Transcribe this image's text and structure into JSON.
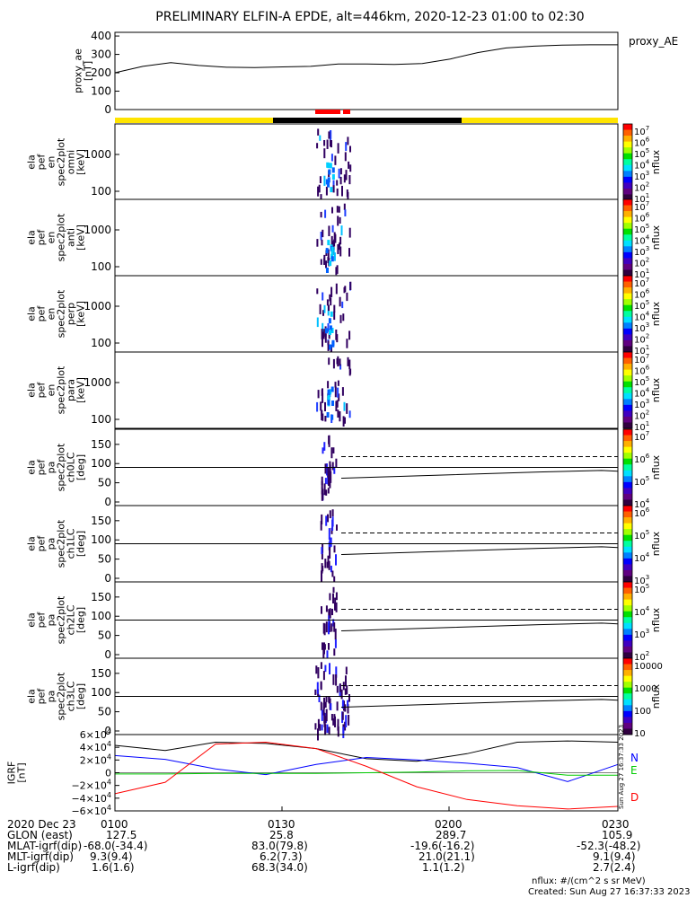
{
  "title": "PRELIMINARY ELFIN-A EPDE, alt=446km, 2020-12-23 01:00 to 02:30",
  "ae_panel": {
    "ylabel": [
      "proxy_ae",
      "[nT]"
    ],
    "right_label": "proxy_AE",
    "yticks": [
      "400",
      "300",
      "200",
      "100",
      "0"
    ],
    "ylim": [
      0,
      420
    ]
  },
  "status_bar": {
    "colors": {
      "yellow": "#FFE400",
      "black": "#000000",
      "red": "#FF0000"
    }
  },
  "energy_panels": [
    {
      "ylabel": [
        "ela",
        "pef",
        "en",
        "spec2plot",
        "omni",
        "[keV]"
      ],
      "yticks": [
        "1000",
        "100"
      ],
      "cbar_ticks": [
        "10^7",
        "10^6",
        "10^5",
        "10^4",
        "10^3",
        "10^2",
        "10^1"
      ],
      "cbar_label": "nflux"
    },
    {
      "ylabel": [
        "ela",
        "pef",
        "en",
        "spec2plot",
        "anti",
        "[keV]"
      ],
      "yticks": [
        "1000",
        "100"
      ],
      "cbar_ticks": [
        "10^7",
        "10^6",
        "10^5",
        "10^4",
        "10^3",
        "10^2",
        "10^1"
      ],
      "cbar_label": "nflux"
    },
    {
      "ylabel": [
        "ela",
        "pef",
        "en",
        "spec2plot",
        "perp",
        "[keV]"
      ],
      "yticks": [
        "1000",
        "100"
      ],
      "cbar_ticks": [
        "10^7",
        "10^6",
        "10^5",
        "10^4",
        "10^3",
        "10^2",
        "10^1"
      ],
      "cbar_label": "nflux"
    },
    {
      "ylabel": [
        "ela",
        "pef",
        "en",
        "spec2plot",
        "para",
        "[keV]"
      ],
      "yticks": [
        "1000",
        "100"
      ],
      "cbar_ticks": [
        "10^7",
        "10^6",
        "10^5",
        "10^4",
        "10^3",
        "10^2",
        "10^1"
      ],
      "cbar_label": "nflux"
    }
  ],
  "pa_panels": [
    {
      "ylabel": [
        "ela",
        "pef",
        "pa",
        "spec2plot",
        "ch0LC",
        "[deg]"
      ],
      "yticks": [
        "150",
        "100",
        "50",
        "0"
      ],
      "cbar_ticks": [
        "10^7",
        "10^6",
        "10^5",
        "10^4"
      ],
      "cbar_label": "nflux"
    },
    {
      "ylabel": [
        "ela",
        "pef",
        "pa",
        "spec2plot",
        "ch1LC",
        "[deg]"
      ],
      "yticks": [
        "150",
        "100",
        "50",
        "0"
      ],
      "cbar_ticks": [
        "10^6",
        "10^5",
        "10^4",
        "10^3"
      ],
      "cbar_label": "nflux"
    },
    {
      "ylabel": [
        "ela",
        "pef",
        "pa",
        "spec2plot",
        "ch2LC",
        "[deg]"
      ],
      "yticks": [
        "150",
        "100",
        "50",
        "0"
      ],
      "cbar_ticks": [
        "10^5",
        "10^4",
        "10^3",
        "10^2"
      ],
      "cbar_label": "nflux"
    },
    {
      "ylabel": [
        "ela",
        "pef",
        "pa",
        "spec2plot",
        "ch3LC",
        "[deg]"
      ],
      "yticks": [
        "150",
        "100",
        "50",
        "0"
      ],
      "cbar_ticks": [
        "10000",
        "1000",
        "100",
        "10"
      ],
      "cbar_label": "nflux"
    }
  ],
  "igrf_panel": {
    "ylabel": [
      "IGRF",
      "[nT]"
    ],
    "yticks": [
      "6×10^4",
      "4×10^4",
      "2×10^4",
      "0",
      "−2×10^4",
      "−4×10^4",
      "−6×10^4"
    ],
    "legend": [
      {
        "label": "N",
        "color": "#0000FF"
      },
      {
        "label": "E",
        "color": "#00CC00"
      },
      {
        "label": "D",
        "color": "#FF0000"
      }
    ],
    "stamp": "Sun Aug 27 16:37:33 2023"
  },
  "chart_data": [
    {
      "type": "line",
      "panel": "proxy_ae",
      "x": [
        "01:00",
        "01:05",
        "01:10",
        "01:15",
        "01:20",
        "01:25",
        "01:30",
        "01:35",
        "01:40",
        "01:45",
        "01:50",
        "01:55",
        "02:00",
        "02:05",
        "02:10",
        "02:15",
        "02:20",
        "02:25",
        "02:30"
      ],
      "series": [
        {
          "values": [
            200,
            235,
            255,
            240,
            230,
            228,
            232,
            235,
            248,
            248,
            245,
            250,
            275,
            310,
            335,
            345,
            350,
            352,
            352
          ]
        }
      ],
      "ylim": [
        0,
        420
      ]
    },
    {
      "type": "line",
      "panel": "IGRF",
      "x": [
        "01:00",
        "01:10",
        "01:20",
        "01:30",
        "01:40",
        "01:50",
        "02:00",
        "02:10",
        "02:20",
        "02:25",
        "02:30"
      ],
      "series": [
        {
          "name": "black",
          "values": [
            43000,
            35000,
            48000,
            46000,
            38000,
            22000,
            18000,
            30000,
            48000,
            50000,
            48000
          ]
        },
        {
          "name": "N",
          "values": [
            27000,
            21000,
            6000,
            -3000,
            13000,
            24000,
            20000,
            15000,
            8000,
            -14000,
            13000
          ]
        },
        {
          "name": "E",
          "values": [
            -2000,
            -2000,
            -1000,
            -1000,
            -1000,
            0,
            1000,
            3000,
            3500,
            -4000,
            -4000
          ]
        },
        {
          "name": "D",
          "values": [
            -33000,
            -15000,
            45000,
            48000,
            38000,
            10000,
            -22000,
            -42000,
            -52000,
            -57000,
            -53000
          ]
        }
      ],
      "ylim": [
        -60000,
        60000
      ]
    }
  ],
  "time_axis": {
    "labels": [
      "0100",
      "0130",
      "0200",
      "0230"
    ],
    "date": "2020 Dec 23"
  },
  "ephemeris": {
    "rows": [
      {
        "label": "GLON (east)",
        "values": [
          "127.5",
          "25.8",
          "289.7",
          "105.9"
        ]
      },
      {
        "label": "MLAT-igrf(dip)",
        "values": [
          "-68.0(-34.4)",
          "83.0(79.8)",
          "-19.6(-16.2)",
          "-52.3(-48.2)"
        ]
      },
      {
        "label": "MLT-igrf(dip)",
        "values": [
          "9.3(9.4)",
          "6.2(7.3)",
          "21.0(21.1)",
          "9.1(9.4)"
        ]
      },
      {
        "label": "L-igrf(dip)",
        "values": [
          "1.6(1.6)",
          "68.3(34.0)",
          "1.1(1.2)",
          "2.7(2.4)"
        ]
      }
    ]
  },
  "footer": {
    "units": "nflux: #/(cm^2 s sr MeV)",
    "created": "Created: Sun Aug 27 16:37:33 2023"
  }
}
